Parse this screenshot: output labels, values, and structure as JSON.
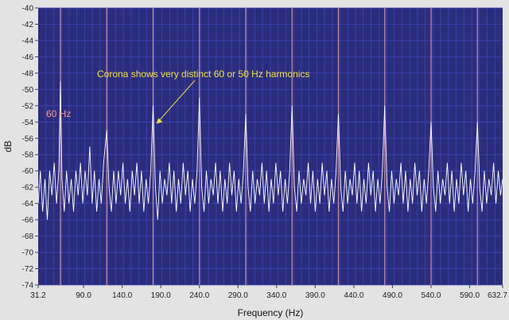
{
  "chart_data": {
    "type": "line",
    "title": "",
    "xlabel": "Frequency (Hz)",
    "ylabel": "dB",
    "xlim": [
      31.2,
      632.7
    ],
    "ylim": [
      -74,
      -40
    ],
    "x_ticks": [
      31.2,
      90.0,
      140.0,
      190.0,
      240.0,
      290.0,
      340.0,
      390.0,
      440.0,
      490.0,
      540.0,
      590.0,
      632.7
    ],
    "x_tick_labels": [
      "31.2",
      "90.0",
      "140.0",
      "190.0",
      "240.0",
      "290.0",
      "340.0",
      "390.0",
      "440.0",
      "490.0",
      "540.0",
      "590.0",
      "632.7"
    ],
    "y_ticks": [
      -40,
      -42,
      -44,
      -46,
      -48,
      -50,
      -52,
      -54,
      -56,
      -58,
      -60,
      -62,
      -64,
      -66,
      -68,
      -70,
      -72,
      -74
    ],
    "y_tick_labels": [
      "-40",
      "-42",
      "-44",
      "-46",
      "-48",
      "-50",
      "-52",
      "-54",
      "-56",
      "-58",
      "-60",
      "-62",
      "-64",
      "-66",
      "-68",
      "-70",
      "-72",
      "-74"
    ],
    "grid": true,
    "harmonic_lines_hz": [
      60,
      120,
      180,
      240,
      300,
      360,
      420,
      480,
      540,
      600
    ],
    "noise_floor_db": -62,
    "spectrum_points": [
      [
        31.2,
        -64
      ],
      [
        34,
        -60
      ],
      [
        37,
        -65
      ],
      [
        40,
        -61
      ],
      [
        43,
        -66
      ],
      [
        46,
        -60
      ],
      [
        49,
        -63
      ],
      [
        52,
        -59
      ],
      [
        55,
        -64
      ],
      [
        58,
        -60
      ],
      [
        60,
        -49
      ],
      [
        62,
        -61
      ],
      [
        65,
        -65
      ],
      [
        68,
        -60
      ],
      [
        71,
        -64
      ],
      [
        74,
        -61
      ],
      [
        77,
        -65
      ],
      [
        80,
        -60
      ],
      [
        83,
        -63
      ],
      [
        86,
        -59
      ],
      [
        89,
        -64
      ],
      [
        92,
        -60
      ],
      [
        95,
        -63
      ],
      [
        98,
        -57
      ],
      [
        101,
        -64
      ],
      [
        104,
        -60
      ],
      [
        107,
        -65
      ],
      [
        110,
        -61
      ],
      [
        113,
        -64
      ],
      [
        116,
        -59
      ],
      [
        120,
        -55
      ],
      [
        123,
        -62
      ],
      [
        126,
        -65
      ],
      [
        129,
        -60
      ],
      [
        132,
        -64
      ],
      [
        135,
        -60
      ],
      [
        138,
        -63
      ],
      [
        141,
        -59
      ],
      [
        144,
        -64
      ],
      [
        147,
        -61
      ],
      [
        150,
        -65
      ],
      [
        153,
        -60
      ],
      [
        156,
        -63
      ],
      [
        159,
        -59
      ],
      [
        162,
        -64
      ],
      [
        165,
        -60
      ],
      [
        168,
        -65
      ],
      [
        171,
        -61
      ],
      [
        174,
        -64
      ],
      [
        177,
        -60
      ],
      [
        180,
        -52
      ],
      [
        183,
        -62
      ],
      [
        186,
        -66
      ],
      [
        189,
        -60
      ],
      [
        192,
        -64
      ],
      [
        195,
        -61
      ],
      [
        198,
        -63
      ],
      [
        201,
        -59
      ],
      [
        204,
        -64
      ],
      [
        207,
        -60
      ],
      [
        210,
        -65
      ],
      [
        213,
        -61
      ],
      [
        216,
        -64
      ],
      [
        219,
        -59
      ],
      [
        222,
        -63
      ],
      [
        225,
        -60
      ],
      [
        228,
        -65
      ],
      [
        231,
        -61
      ],
      [
        234,
        -64
      ],
      [
        237,
        -60
      ],
      [
        240,
        -51
      ],
      [
        243,
        -62
      ],
      [
        246,
        -65
      ],
      [
        249,
        -60
      ],
      [
        252,
        -64
      ],
      [
        255,
        -61
      ],
      [
        258,
        -63
      ],
      [
        261,
        -59
      ],
      [
        264,
        -64
      ],
      [
        267,
        -60
      ],
      [
        270,
        -65
      ],
      [
        273,
        -61
      ],
      [
        276,
        -64
      ],
      [
        279,
        -59
      ],
      [
        282,
        -63
      ],
      [
        285,
        -60
      ],
      [
        288,
        -65
      ],
      [
        291,
        -61
      ],
      [
        294,
        -64
      ],
      [
        297,
        -60
      ],
      [
        300,
        -53
      ],
      [
        303,
        -62
      ],
      [
        306,
        -65
      ],
      [
        309,
        -60
      ],
      [
        312,
        -64
      ],
      [
        315,
        -61
      ],
      [
        318,
        -63
      ],
      [
        321,
        -59
      ],
      [
        324,
        -64
      ],
      [
        327,
        -60
      ],
      [
        330,
        -65
      ],
      [
        333,
        -61
      ],
      [
        336,
        -64
      ],
      [
        339,
        -59
      ],
      [
        342,
        -63
      ],
      [
        345,
        -60
      ],
      [
        348,
        -65
      ],
      [
        351,
        -61
      ],
      [
        354,
        -64
      ],
      [
        357,
        -60
      ],
      [
        360,
        -52
      ],
      [
        363,
        -62
      ],
      [
        366,
        -65
      ],
      [
        369,
        -60
      ],
      [
        372,
        -64
      ],
      [
        375,
        -61
      ],
      [
        378,
        -63
      ],
      [
        381,
        -59
      ],
      [
        384,
        -64
      ],
      [
        387,
        -60
      ],
      [
        390,
        -65
      ],
      [
        393,
        -61
      ],
      [
        396,
        -64
      ],
      [
        399,
        -59
      ],
      [
        402,
        -63
      ],
      [
        405,
        -60
      ],
      [
        408,
        -65
      ],
      [
        411,
        -61
      ],
      [
        414,
        -64
      ],
      [
        417,
        -60
      ],
      [
        420,
        -53
      ],
      [
        423,
        -62
      ],
      [
        426,
        -65
      ],
      [
        429,
        -60
      ],
      [
        432,
        -64
      ],
      [
        435,
        -61
      ],
      [
        438,
        -63
      ],
      [
        441,
        -59
      ],
      [
        444,
        -64
      ],
      [
        447,
        -60
      ],
      [
        450,
        -65
      ],
      [
        453,
        -61
      ],
      [
        456,
        -64
      ],
      [
        459,
        -59
      ],
      [
        462,
        -63
      ],
      [
        465,
        -60
      ],
      [
        468,
        -65
      ],
      [
        471,
        -61
      ],
      [
        474,
        -64
      ],
      [
        477,
        -60
      ],
      [
        480,
        -52
      ],
      [
        483,
        -62
      ],
      [
        486,
        -65
      ],
      [
        489,
        -60
      ],
      [
        492,
        -64
      ],
      [
        495,
        -61
      ],
      [
        498,
        -63
      ],
      [
        501,
        -59
      ],
      [
        504,
        -64
      ],
      [
        507,
        -60
      ],
      [
        510,
        -65
      ],
      [
        513,
        -61
      ],
      [
        516,
        -64
      ],
      [
        519,
        -59
      ],
      [
        522,
        -63
      ],
      [
        525,
        -60
      ],
      [
        528,
        -65
      ],
      [
        531,
        -61
      ],
      [
        534,
        -64
      ],
      [
        537,
        -60
      ],
      [
        540,
        -54
      ],
      [
        543,
        -62
      ],
      [
        546,
        -65
      ],
      [
        549,
        -60
      ],
      [
        552,
        -64
      ],
      [
        555,
        -61
      ],
      [
        558,
        -63
      ],
      [
        561,
        -59
      ],
      [
        564,
        -64
      ],
      [
        567,
        -60
      ],
      [
        570,
        -65
      ],
      [
        573,
        -61
      ],
      [
        576,
        -64
      ],
      [
        579,
        -59
      ],
      [
        582,
        -63
      ],
      [
        585,
        -60
      ],
      [
        588,
        -65
      ],
      [
        591,
        -61
      ],
      [
        594,
        -64
      ],
      [
        597,
        -60
      ],
      [
        600,
        -54
      ],
      [
        603,
        -62
      ],
      [
        606,
        -65
      ],
      [
        609,
        -60
      ],
      [
        612,
        -64
      ],
      [
        615,
        -61
      ],
      [
        618,
        -63
      ],
      [
        621,
        -59
      ],
      [
        624,
        -64
      ],
      [
        627,
        -60
      ],
      [
        630,
        -63
      ],
      [
        632.7,
        -61
      ]
    ],
    "series": [
      {
        "name": "",
        "color": "#ffffff"
      }
    ],
    "annotations": [
      {
        "text": "Corona shows very distinct 60 or 50 Hz harmonics",
        "color": "#f0e040",
        "point_x": 184,
        "point_y": -54.2
      },
      {
        "text": "60 Hz",
        "color": "#ef9a9a"
      }
    ],
    "colors": {
      "plot_bg": "#2b2d7c",
      "grid": "#3d44b8",
      "harmonic": "#e8a0b0",
      "trace": "#ffffff",
      "page_bg": "#e3e3e3"
    }
  }
}
